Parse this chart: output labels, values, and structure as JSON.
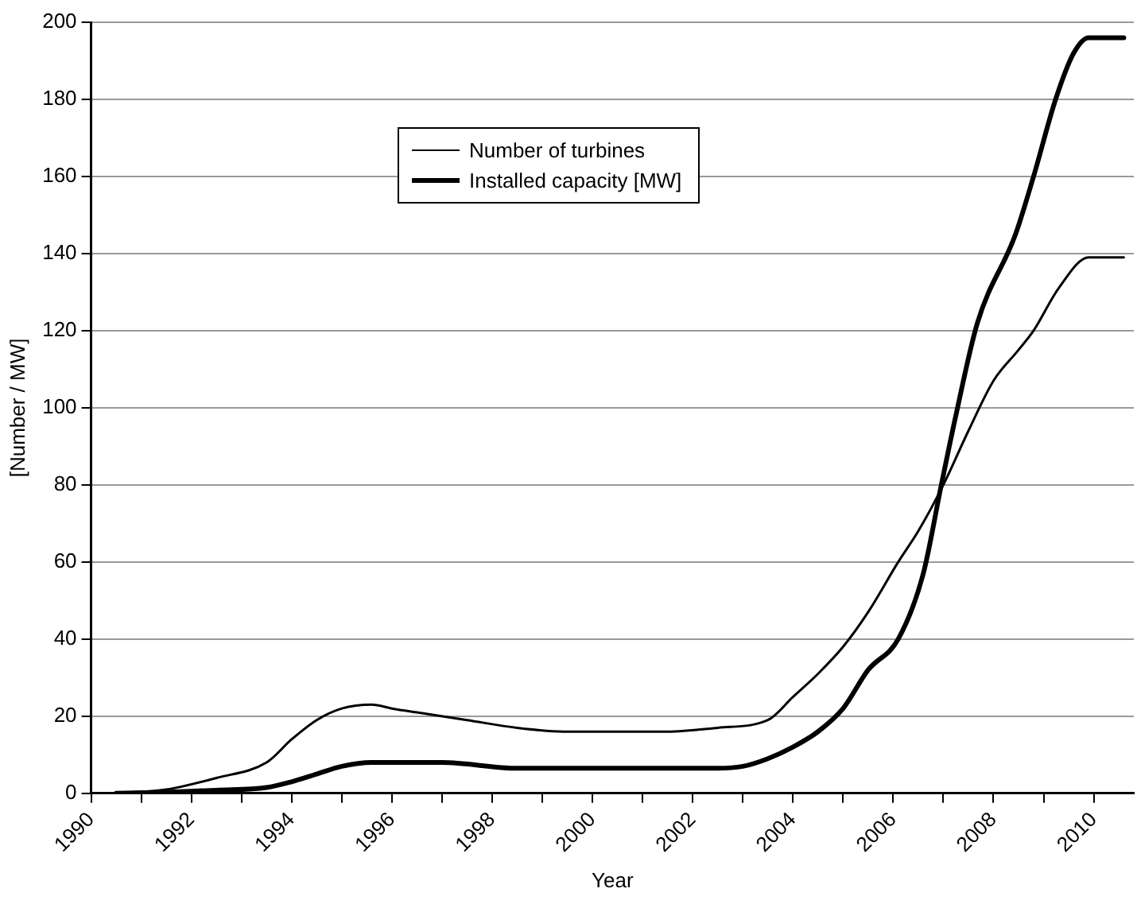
{
  "chart_data": {
    "type": "line",
    "xlabel": "Year",
    "ylabel": "[Number / MW]",
    "xlim": [
      1990,
      2010.8
    ],
    "xticks": [
      1990,
      {
        "value": 1991,
        "label": null
      },
      1992,
      {
        "value": 1993,
        "label": null
      },
      1994,
      {
        "value": 1995,
        "label": null
      },
      1996,
      {
        "value": 1997,
        "label": null
      },
      1998,
      {
        "value": 1999,
        "label": null
      },
      2000,
      {
        "value": 2001,
        "label": null
      },
      2002,
      {
        "value": 2003,
        "label": null
      },
      2004,
      {
        "value": 2005,
        "label": null
      },
      2006,
      {
        "value": 2007,
        "label": null
      },
      2008,
      {
        "value": 2009,
        "label": null
      },
      2010
    ],
    "ylim": [
      0,
      200
    ],
    "yticks": [
      0,
      20,
      40,
      60,
      80,
      100,
      120,
      140,
      160,
      180,
      200
    ],
    "grid": "y",
    "legend": "top",
    "marker": "none",
    "line_style": "solid",
    "series": [
      {
        "name": "Number of turbines",
        "color": "#000000",
        "x": [
          1990.5,
          1991.5,
          1992.5,
          1993.5,
          1994,
          1994.5,
          1995,
          1995.6,
          1996,
          1996.5,
          1997.5,
          1998.5,
          1999.5,
          2000.5,
          2001.5,
          2002.5,
          2003.5,
          2004,
          2004.5,
          2005,
          2005.5,
          2006.1,
          2006.5,
          2007,
          2007.5,
          2008,
          2008.5,
          2008.8,
          2009.3,
          2009.9,
          2010.6
        ],
        "values": [
          0,
          1,
          4,
          8,
          14,
          19,
          22,
          23,
          22,
          21,
          19,
          17,
          16,
          16,
          16,
          17,
          19,
          25,
          31,
          38,
          47,
          60,
          68,
          80,
          94,
          107,
          115,
          120,
          131,
          139,
          139
        ]
      },
      {
        "name": "Installed capacity [MW]",
        "color": "#000000",
        "x": [
          1990.5,
          1991.5,
          1992.5,
          1993.5,
          1994,
          1994.5,
          1995,
          1995.6,
          1996.5,
          1997,
          1998.5,
          1999.5,
          2000.5,
          2001.5,
          2002.5,
          2003,
          2003.5,
          2004,
          2004.5,
          2005,
          2005.5,
          2006.1,
          2006.6,
          2006.96,
          2007.25,
          2007.68,
          2008.44,
          2008.8,
          2009.24,
          2009.6,
          2009.9,
          2010.6
        ],
        "values": [
          0,
          0.3,
          0.8,
          1.5,
          3,
          5,
          7,
          8,
          8,
          8,
          6.5,
          6.5,
          6.5,
          6.5,
          6.5,
          7,
          9,
          12,
          16,
          22,
          32,
          40,
          57,
          80,
          98,
          122,
          145,
          160,
          180,
          192,
          196,
          196
        ]
      }
    ]
  }
}
